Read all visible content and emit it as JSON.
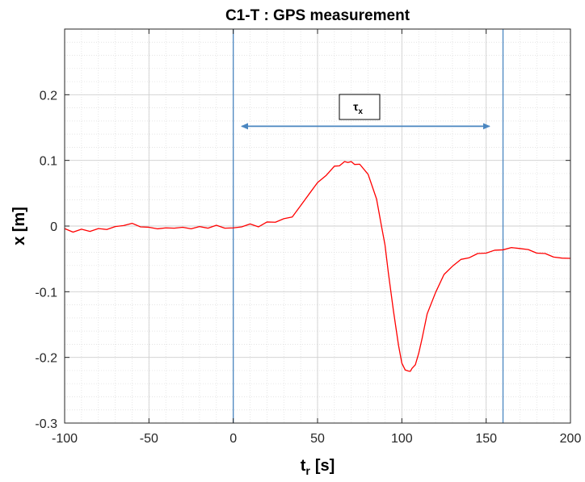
{
  "chart_data": {
    "type": "line",
    "title": "C1-T : GPS measurement",
    "xlabel": {
      "main": "t",
      "sub": "r",
      "unit": "[s]"
    },
    "ylabel": "x [m]",
    "xlim": [
      -100,
      200
    ],
    "ylim": [
      -0.3,
      0.3
    ],
    "x_ticks": [
      -100,
      -50,
      0,
      50,
      100,
      150,
      200
    ],
    "x_tick_labels": [
      "-100",
      "-50",
      "0",
      "50",
      "100",
      "150",
      "200"
    ],
    "y_ticks": [
      -0.3,
      -0.2,
      -0.1,
      0,
      0.1,
      0.2
    ],
    "y_tick_labels": [
      "-0.3",
      "-0.2",
      "-0.1",
      "0",
      "0.1",
      "0.2"
    ],
    "grid": true,
    "minor_grid": true,
    "series": [
      {
        "color": "#ff0000",
        "x": [
          -100,
          -95,
          -90,
          -85,
          -80,
          -75,
          -70,
          -65,
          -60,
          -55,
          -50,
          -45,
          -40,
          -35,
          -30,
          -25,
          -20,
          -15,
          -10,
          -5,
          0,
          5,
          10,
          15,
          20,
          25,
          30,
          35,
          40,
          45,
          50,
          55,
          60,
          63,
          66,
          68,
          70,
          72,
          75,
          80,
          85,
          88,
          90,
          92,
          95,
          98,
          100,
          102,
          104,
          105,
          106,
          108,
          110,
          112,
          115,
          120,
          125,
          130,
          135,
          140,
          145,
          150,
          155,
          160,
          165,
          170,
          175,
          180,
          185,
          190,
          195,
          200
        ],
        "y": [
          -0.005,
          -0.008,
          -0.006,
          -0.007,
          -0.005,
          -0.004,
          -0.002,
          0.002,
          0.003,
          0.0,
          -0.003,
          -0.003,
          -0.004,
          -0.002,
          -0.003,
          -0.003,
          -0.002,
          -0.002,
          0.0,
          -0.002,
          -0.004,
          0.0,
          0.002,
          0.0,
          0.005,
          0.007,
          0.01,
          0.015,
          0.03,
          0.05,
          0.065,
          0.078,
          0.09,
          0.093,
          0.097,
          0.098,
          0.097,
          0.095,
          0.093,
          0.08,
          0.04,
          0.0,
          -0.03,
          -0.07,
          -0.13,
          -0.18,
          -0.21,
          -0.218,
          -0.222,
          -0.22,
          -0.218,
          -0.21,
          -0.195,
          -0.17,
          -0.135,
          -0.1,
          -0.075,
          -0.06,
          -0.052,
          -0.047,
          -0.043,
          -0.04,
          -0.038,
          -0.035,
          -0.034,
          -0.033,
          -0.037,
          -0.04,
          -0.043,
          -0.046,
          -0.05,
          -0.048
        ]
      }
    ],
    "vertical_lines": [
      0,
      160
    ],
    "annotation": {
      "label": "τ",
      "label_sub": "x",
      "arrow_from": 5,
      "arrow_to": 152,
      "arrow_y": 0.152
    }
  }
}
